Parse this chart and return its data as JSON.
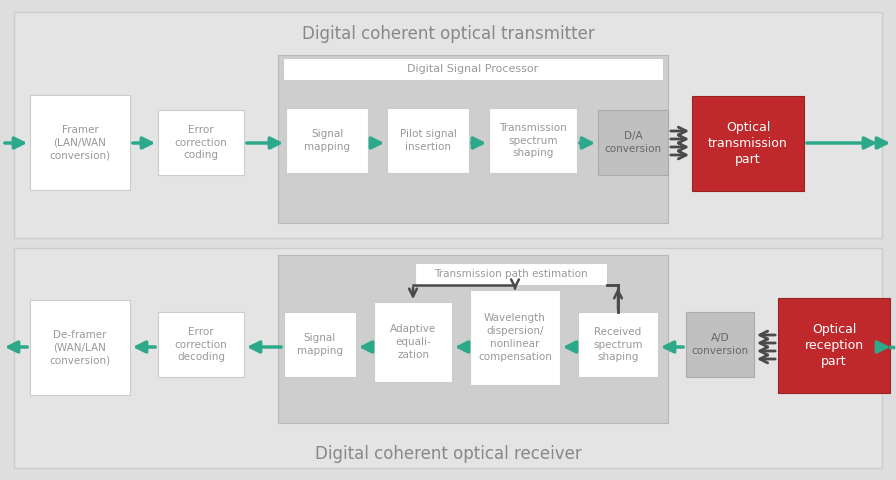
{
  "bg_color": "#dedede",
  "tx_panel_color": "#e4e4e4",
  "rx_panel_color": "#e4e4e4",
  "white_box_color": "#ffffff",
  "gray_box_color": "#c0c0c0",
  "red_box_color": "#c0292b",
  "dsp_panel_color": "#cecece",
  "arrow_teal": "#2ca98b",
  "arrow_dark": "#4a4a4a",
  "text_title": "#888888",
  "text_box": "#999999",
  "text_red_box": "#ffffff",
  "title_tx": "Digital coherent optical transmitter",
  "title_rx": "Digital coherent optical receiver",
  "dsp_label": "Digital Signal Processor",
  "tx_blocks": [
    "Framer\n(LAN/WAN\nconversion)",
    "Error\ncorrection\ncoding",
    "Signal\nmapping",
    "Pilot signal\ninsertion",
    "Transmission\nspectrum\nshaping"
  ],
  "tx_gray_label": "D/A\nconversion",
  "tx_red_label": "Optical\ntransmission\npart",
  "rx_blocks": [
    "De-framer\n(WAN/LAN\nconversion)",
    "Error\ncorrection\ndecoding",
    "Signal\nmapping",
    "Adaptive\nequali-\nzation",
    "Wavelength\ndispersion/\nnonlinear\ncompensation",
    "Received\nspectrum\nshaping"
  ],
  "rx_gray_label": "A/D\nconversion",
  "rx_red_label": "Optical\nreception\npart",
  "feedback_label": "Transmission path estimation"
}
